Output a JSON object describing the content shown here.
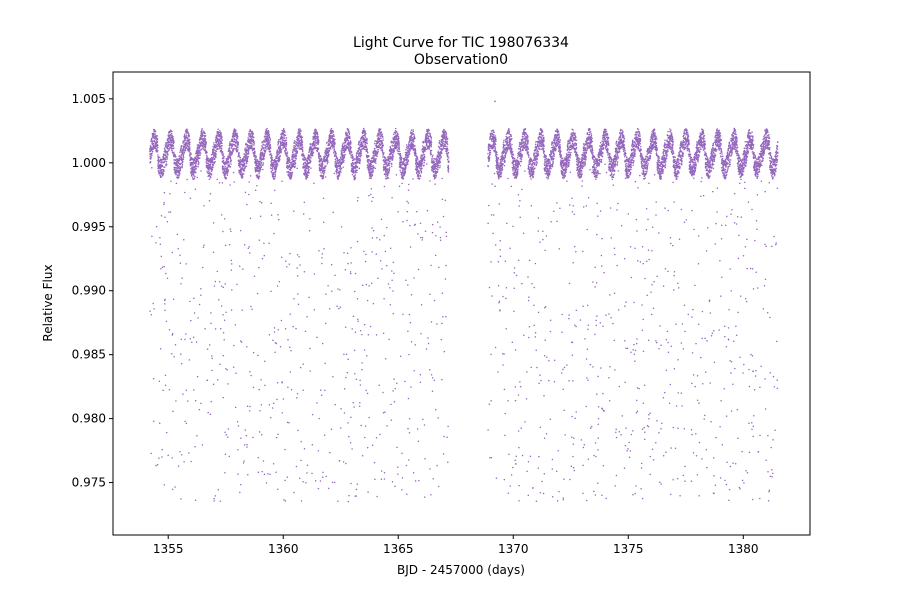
{
  "chart_data": {
    "type": "scatter",
    "title": "Light Curve for TIC 198076334",
    "subtitle": "Observation0",
    "xlabel": "BJD - 2457000 (days)",
    "ylabel": "Relative Flux",
    "xlim": [
      1352.6,
      1382.9
    ],
    "ylim": [
      0.9709,
      1.0071
    ],
    "xticks": [
      1355,
      1360,
      1365,
      1370,
      1375,
      1380
    ],
    "xtick_labels": [
      "1355",
      "1360",
      "1365",
      "1370",
      "1375",
      "1380"
    ],
    "yticks": [
      0.975,
      0.98,
      0.985,
      0.99,
      0.995,
      1.0,
      1.005
    ],
    "ytick_labels": [
      "0.975",
      "0.980",
      "0.985",
      "0.990",
      "0.995",
      "1.000",
      "1.005"
    ],
    "grid": false,
    "marker_color": "#9467bd",
    "series": [
      {
        "segments": [
          {
            "x_start": 1354.2,
            "x_end": 1367.2
          },
          {
            "x_start": 1368.9,
            "x_end": 1381.5
          }
        ],
        "baseline_flux": 1.0,
        "variability_amplitude": 0.0013,
        "variability_period_days": 0.7,
        "eclipse_min_flux": 0.9735,
        "eclipse_period_days": 0.35,
        "peak_flux": 1.0048,
        "peak_x": 1369.2
      }
    ]
  }
}
